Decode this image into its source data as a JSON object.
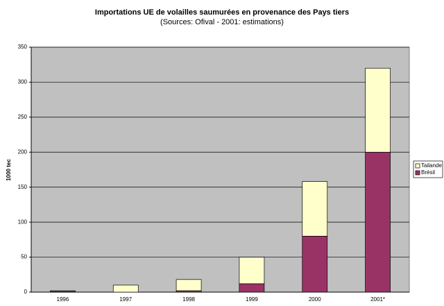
{
  "chart_data": {
    "type": "stacked_bar",
    "title": "Importations UE de volailles saumurées en provenance des Pays tiers",
    "subtitle": "(Sources: Ofival - 2001: estimations)",
    "y_label": "1000 tec",
    "categories": [
      "1996",
      "1997",
      "1998",
      "1999",
      "2000",
      "2001*"
    ],
    "series": [
      {
        "name": "Brésil",
        "color": "#993366",
        "values": [
          1,
          0,
          2,
          12,
          80,
          200
        ]
      },
      {
        "name": "Tailande",
        "color": "#ffffcc",
        "values": [
          1,
          10,
          16,
          38,
          78,
          120
        ]
      }
    ],
    "ylim": [
      0,
      350
    ],
    "yticks": [
      0,
      50,
      100,
      150,
      200,
      250,
      300,
      350
    ],
    "grid": true,
    "legend": "right"
  }
}
